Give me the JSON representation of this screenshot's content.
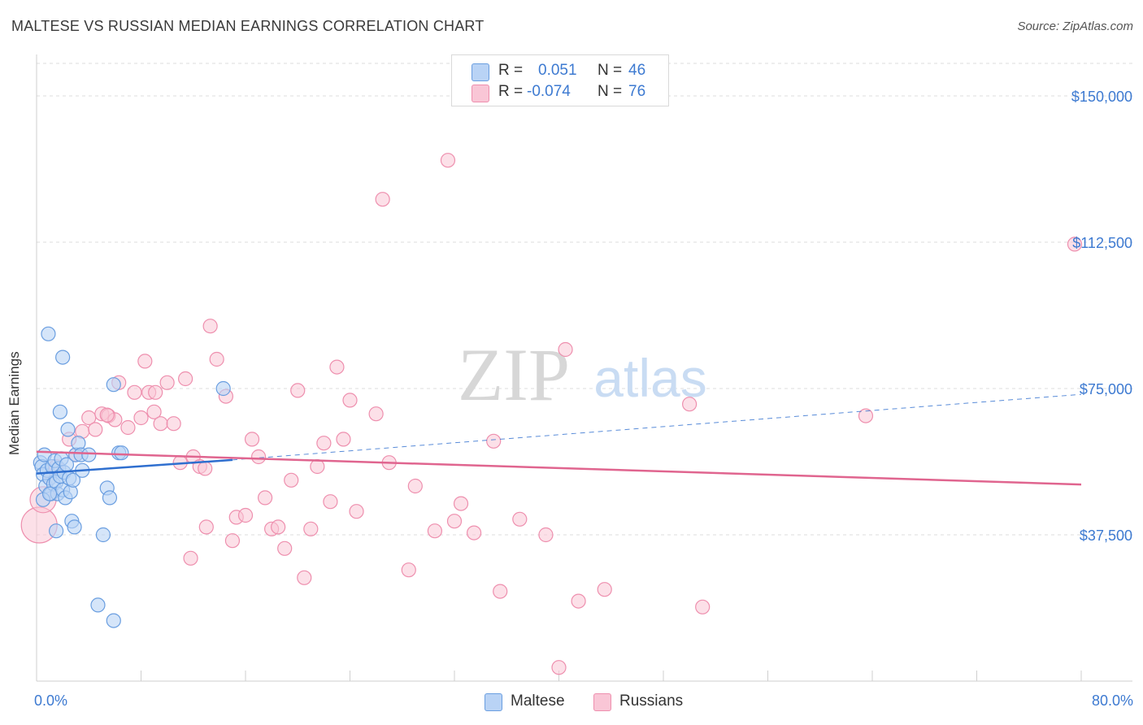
{
  "title": "MALTESE VS RUSSIAN MEDIAN EARNINGS CORRELATION CHART",
  "source": "Source: ZipAtlas.com",
  "watermark": {
    "zip": "ZIP",
    "atlas": "atlas"
  },
  "legend": {
    "rows": [
      {
        "r_label": "R =",
        "r_value": "0.051",
        "n_label": "N =",
        "n_value": "46"
      },
      {
        "r_label": "R =",
        "r_value": "-0.074",
        "n_label": "N =",
        "n_value": "76"
      }
    ]
  },
  "bottom_legend": [
    "Maltese",
    "Russians"
  ],
  "colors": {
    "maltese_fill": "#b9d3f5",
    "maltese_stroke": "#6a9ee0",
    "maltese_line": "#2f6fcf",
    "russian_fill": "#f9c6d6",
    "russian_stroke": "#ee8fae",
    "russian_line": "#e0658f",
    "accent_text": "#3d7ad1",
    "grid": "#dcdcdc"
  },
  "chart_data": {
    "type": "scatter",
    "title": "MALTESE VS RUSSIAN MEDIAN EARNINGS CORRELATION CHART",
    "xlabel": "",
    "ylabel": "Median Earnings",
    "xlim": [
      0,
      80
    ],
    "ylim": [
      0,
      160000
    ],
    "x_tick_labels": [
      "0.0%",
      "80.0%"
    ],
    "y_ticks": [
      37500,
      75000,
      112500,
      150000
    ],
    "y_tick_labels": [
      "$37,500",
      "$75,000",
      "$112,500",
      "$150,000"
    ],
    "grid": true,
    "legend_position": "top-center",
    "series": [
      {
        "name": "Maltese",
        "r": 0.051,
        "n": 46,
        "trend": {
          "x": [
            0,
            15
          ],
          "y": [
            53200,
            56700
          ],
          "extended_to": [
            80,
            73500
          ]
        },
        "points": [
          [
            0.3,
            56000
          ],
          [
            0.4,
            55000
          ],
          [
            0.5,
            53000
          ],
          [
            0.6,
            58000
          ],
          [
            0.7,
            50000
          ],
          [
            0.8,
            54000
          ],
          [
            1.0,
            52000
          ],
          [
            1.1,
            48000
          ],
          [
            1.2,
            55000
          ],
          [
            1.3,
            50500
          ],
          [
            1.4,
            56500
          ],
          [
            1.5,
            51000
          ],
          [
            1.6,
            48000
          ],
          [
            1.7,
            54500
          ],
          [
            1.8,
            52500
          ],
          [
            1.9,
            57000
          ],
          [
            2.0,
            49000
          ],
          [
            2.1,
            53500
          ],
          [
            2.2,
            47000
          ],
          [
            2.3,
            55500
          ],
          [
            2.4,
            64500
          ],
          [
            2.5,
            52000
          ],
          [
            2.6,
            48500
          ],
          [
            2.8,
            51500
          ],
          [
            3.0,
            58000
          ],
          [
            0.9,
            89000
          ],
          [
            2.0,
            83000
          ],
          [
            1.8,
            69000
          ],
          [
            2.7,
            41000
          ],
          [
            2.9,
            39500
          ],
          [
            1.5,
            38500
          ],
          [
            3.2,
            61000
          ],
          [
            3.4,
            58000
          ],
          [
            3.5,
            54000
          ],
          [
            4.0,
            58000
          ],
          [
            5.4,
            49500
          ],
          [
            5.6,
            47000
          ],
          [
            5.9,
            76000
          ],
          [
            5.1,
            37500
          ],
          [
            6.3,
            58500
          ],
          [
            6.5,
            58500
          ],
          [
            4.7,
            19500
          ],
          [
            5.9,
            15500
          ],
          [
            14.3,
            75000
          ],
          [
            0.5,
            46500
          ],
          [
            1.0,
            48000
          ]
        ]
      },
      {
        "name": "Russians",
        "r": -0.074,
        "n": 76,
        "trend": {
          "x": [
            0,
            80
          ],
          "y": [
            58800,
            50400
          ]
        },
        "points": [
          [
            0.2,
            40000
          ],
          [
            0.5,
            46500
          ],
          [
            1.0,
            52000
          ],
          [
            1.5,
            55000
          ],
          [
            2.5,
            62000
          ],
          [
            3.0,
            58000
          ],
          [
            3.5,
            64000
          ],
          [
            4.0,
            67500
          ],
          [
            4.5,
            64500
          ],
          [
            5.0,
            68500
          ],
          [
            5.5,
            68000
          ],
          [
            6.0,
            67000
          ],
          [
            6.3,
            76500
          ],
          [
            7.0,
            65000
          ],
          [
            7.5,
            74000
          ],
          [
            8.0,
            67500
          ],
          [
            8.3,
            82000
          ],
          [
            8.6,
            74000
          ],
          [
            9.0,
            69000
          ],
          [
            9.5,
            66000
          ],
          [
            10.0,
            76500
          ],
          [
            10.5,
            66000
          ],
          [
            11.0,
            56000
          ],
          [
            11.4,
            77500
          ],
          [
            12.0,
            57500
          ],
          [
            12.5,
            55000
          ],
          [
            13.0,
            39500
          ],
          [
            13.3,
            91000
          ],
          [
            13.8,
            82500
          ],
          [
            14.5,
            73000
          ],
          [
            15.0,
            36000
          ],
          [
            15.3,
            42000
          ],
          [
            16.0,
            42500
          ],
          [
            16.5,
            62000
          ],
          [
            17.0,
            57500
          ],
          [
            17.5,
            47000
          ],
          [
            18.0,
            39000
          ],
          [
            18.5,
            39500
          ],
          [
            19.0,
            34000
          ],
          [
            19.5,
            51500
          ],
          [
            20.0,
            74500
          ],
          [
            20.5,
            26500
          ],
          [
            21.0,
            39000
          ],
          [
            21.5,
            55000
          ],
          [
            22.0,
            61000
          ],
          [
            22.5,
            46000
          ],
          [
            23.0,
            80500
          ],
          [
            23.5,
            62000
          ],
          [
            24.0,
            72000
          ],
          [
            24.5,
            43500
          ],
          [
            26.0,
            68500
          ],
          [
            27.0,
            56000
          ],
          [
            28.5,
            28500
          ],
          [
            29.0,
            50000
          ],
          [
            30.5,
            38500
          ],
          [
            31.5,
            133500
          ],
          [
            32.0,
            41000
          ],
          [
            32.5,
            45500
          ],
          [
            33.5,
            38000
          ],
          [
            35.0,
            61500
          ],
          [
            35.5,
            23000
          ],
          [
            37.0,
            41500
          ],
          [
            39.0,
            37500
          ],
          [
            40.5,
            85000
          ],
          [
            41.5,
            20500
          ],
          [
            43.5,
            23500
          ],
          [
            50.0,
            71000
          ],
          [
            51.0,
            19000
          ],
          [
            63.5,
            68000
          ],
          [
            79.5,
            112000
          ],
          [
            26.5,
            123500
          ],
          [
            5.4,
            68200
          ],
          [
            9.1,
            74000
          ],
          [
            12.9,
            54500
          ],
          [
            40.0,
            3500
          ],
          [
            11.8,
            31500
          ]
        ]
      }
    ]
  }
}
